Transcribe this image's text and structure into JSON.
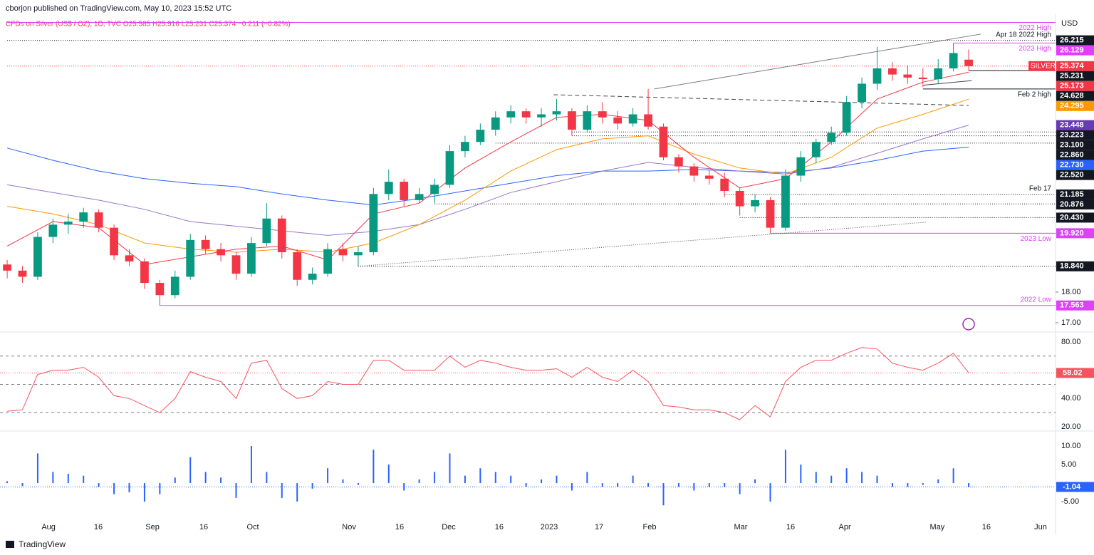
{
  "header": {
    "author_line": "cborjon published on TradingView.com, May 10, 2023 15:52 UTC",
    "symbol_line": "CFDs on Silver (US$ / OZ), 1D, TVC  O25.585 H25.916 L25.231 C25.374 −0.211 (−0.82%)"
  },
  "currency": "USD",
  "footer": "TradingView",
  "chart_data": [
    {
      "type": "candlestick",
      "up_color": "#089981",
      "down_color": "#f23645",
      "xlim": [
        -0.47,
        68.69
      ],
      "xticks": [
        {
          "value": 2.71,
          "label": "Aug"
        },
        {
          "value": 5.97,
          "label": "16"
        },
        {
          "value": 9.52,
          "label": "Sep"
        },
        {
          "value": 12.88,
          "label": "16"
        },
        {
          "value": 16.1,
          "label": "Oct"
        },
        {
          "value": 22.4,
          "label": "Nov"
        },
        {
          "value": 25.71,
          "label": "16"
        },
        {
          "value": 28.93,
          "label": "Dec"
        },
        {
          "value": 32.24,
          "label": "16"
        },
        {
          "value": 35.51,
          "label": "2023"
        },
        {
          "value": 38.78,
          "label": "17"
        },
        {
          "value": 42.09,
          "label": "Feb"
        },
        {
          "value": 48.06,
          "label": "Mar"
        },
        {
          "value": 51.33,
          "label": "16"
        },
        {
          "value": 54.88,
          "label": "Apr"
        },
        {
          "value": 60.94,
          "label": "May"
        },
        {
          "value": 64.16,
          "label": "16"
        },
        {
          "value": 67.71,
          "label": "Jun"
        }
      ],
      "ylim": [
        16.72,
        27.02
      ],
      "yticks": [
        {
          "value": 17,
          "label": "17.00"
        },
        {
          "value": 18,
          "label": "18.00"
        }
      ],
      "candles": [
        [
          18.9,
          19.05,
          18.45,
          18.7
        ],
        [
          18.7,
          18.85,
          18.3,
          18.5
        ],
        [
          18.5,
          19.95,
          18.4,
          19.8
        ],
        [
          19.8,
          20.4,
          19.6,
          20.2
        ],
        [
          20.2,
          20.55,
          19.9,
          20.3
        ],
        [
          20.3,
          20.75,
          20.1,
          20.6
        ],
        [
          20.6,
          20.7,
          19.95,
          20.1
        ],
        [
          20.1,
          20.2,
          19.05,
          19.2
        ],
        [
          19.2,
          19.4,
          18.85,
          19.0
        ],
        [
          19.0,
          19.1,
          18.1,
          18.3
        ],
        [
          18.3,
          18.4,
          17.563,
          17.9
        ],
        [
          17.9,
          18.7,
          17.8,
          18.5
        ],
        [
          18.5,
          19.9,
          18.4,
          19.7
        ],
        [
          19.7,
          19.85,
          19.25,
          19.4
        ],
        [
          19.4,
          19.6,
          19.0,
          19.2
        ],
        [
          19.2,
          19.3,
          18.4,
          18.6
        ],
        [
          18.6,
          19.8,
          18.5,
          19.6
        ],
        [
          19.6,
          20.9,
          19.5,
          20.4
        ],
        [
          20.4,
          20.5,
          19.1,
          19.3
        ],
        [
          19.3,
          19.4,
          18.2,
          18.4
        ],
        [
          18.4,
          18.8,
          18.25,
          18.6
        ],
        [
          18.6,
          19.6,
          18.5,
          19.4
        ],
        [
          19.4,
          19.6,
          19.0,
          19.2
        ],
        [
          19.2,
          19.5,
          18.84,
          19.3
        ],
        [
          19.3,
          21.4,
          19.2,
          21.2
        ],
        [
          21.2,
          22.0,
          21.0,
          21.6
        ],
        [
          21.6,
          21.7,
          20.8,
          21.0
        ],
        [
          21.0,
          21.4,
          20.9,
          21.2
        ],
        [
          21.2,
          21.7,
          20.9,
          21.5
        ],
        [
          21.5,
          22.8,
          21.4,
          22.6
        ],
        [
          22.6,
          23.1,
          22.4,
          22.9
        ],
        [
          22.9,
          23.5,
          22.8,
          23.3
        ],
        [
          23.3,
          23.9,
          23.1,
          23.7
        ],
        [
          23.7,
          24.1,
          23.5,
          23.9
        ],
        [
          23.9,
          24.0,
          23.5,
          23.7
        ],
        [
          23.7,
          24.0,
          23.4,
          23.8
        ],
        [
          23.8,
          24.3,
          23.6,
          23.9
        ],
        [
          23.9,
          24.0,
          23.1,
          23.3
        ],
        [
          23.3,
          24.1,
          23.2,
          23.9
        ],
        [
          23.9,
          24.2,
          23.5,
          23.7
        ],
        [
          23.7,
          23.9,
          23.3,
          23.5
        ],
        [
          23.5,
          24.0,
          23.4,
          23.8
        ],
        [
          23.8,
          24.628,
          23.3,
          23.4
        ],
        [
          23.4,
          23.5,
          22.3,
          22.4
        ],
        [
          22.4,
          22.5,
          21.9,
          22.1
        ],
        [
          22.1,
          22.2,
          21.6,
          21.8
        ],
        [
          21.8,
          22.0,
          21.5,
          21.7
        ],
        [
          21.7,
          21.9,
          21.1,
          21.3
        ],
        [
          21.3,
          21.4,
          20.5,
          20.8
        ],
        [
          20.8,
          21.2,
          20.6,
          21.0
        ],
        [
          21.0,
          21.1,
          19.92,
          20.1
        ],
        [
          20.1,
          22.0,
          20.0,
          21.8
        ],
        [
          21.8,
          22.6,
          21.6,
          22.4
        ],
        [
          22.4,
          23.0,
          22.2,
          22.9
        ],
        [
          22.9,
          23.4,
          22.8,
          23.2
        ],
        [
          23.2,
          24.4,
          23.1,
          24.2
        ],
        [
          24.2,
          25.0,
          24.0,
          24.8
        ],
        [
          24.8,
          26.0,
          24.6,
          25.3
        ],
        [
          25.3,
          25.5,
          24.9,
          25.1
        ],
        [
          25.1,
          25.4,
          24.8,
          25.0
        ],
        [
          25.0,
          25.3,
          24.7,
          24.95
        ],
        [
          24.95,
          25.6,
          24.8,
          25.3
        ],
        [
          25.3,
          26.129,
          25.2,
          25.8
        ],
        [
          25.585,
          25.916,
          25.231,
          25.374
        ]
      ],
      "ma_x": [
        0,
        3,
        6,
        9,
        12,
        15,
        18,
        21,
        24,
        27,
        30,
        33,
        36,
        39,
        42,
        45,
        48,
        51,
        54,
        57,
        60,
        63
      ],
      "series": [
        {
          "color": "#2962ff",
          "values": [
            22.7,
            22.3,
            21.95,
            21.7,
            21.55,
            21.44,
            21.2,
            21.0,
            20.84,
            21.05,
            21.3,
            21.55,
            21.8,
            21.95,
            21.95,
            22.0,
            21.95,
            21.9,
            22.05,
            22.3,
            22.6,
            22.73
          ]
        },
        {
          "color": "#9575cd",
          "values": [
            21.5,
            21.25,
            21.0,
            20.7,
            20.3,
            20.15,
            20.0,
            19.85,
            19.98,
            20.2,
            20.7,
            21.25,
            21.6,
            21.95,
            22.23,
            22.07,
            21.95,
            21.85,
            22.07,
            22.53,
            23.0,
            23.448
          ]
        },
        {
          "color": "#ff9800",
          "values": [
            20.8,
            20.55,
            20.2,
            19.6,
            19.4,
            19.3,
            19.4,
            19.3,
            19.6,
            20.2,
            21.0,
            21.95,
            22.65,
            23.0,
            23.1,
            22.5,
            22.05,
            21.85,
            22.4,
            23.35,
            23.8,
            24.295
          ]
        },
        {
          "color": "#f23645",
          "values": [
            19.5,
            20.3,
            20.1,
            18.9,
            19.15,
            19.4,
            19.5,
            19.05,
            20.55,
            20.9,
            22.05,
            22.9,
            23.7,
            23.8,
            23.6,
            22.4,
            21.4,
            21.7,
            22.9,
            24.3,
            24.85,
            25.173
          ]
        }
      ],
      "levels": [
        {
          "price": 26.8,
          "note": "2022 High",
          "note_pos": "below",
          "color": "#e040fb",
          "line": "solid",
          "from": 0,
          "box": false
        },
        {
          "price": 26.215,
          "note": "Apr 18 2022 High",
          "note_pos": "above",
          "color": "#131722",
          "line": "dotted",
          "from": 0
        },
        {
          "price": 26.129,
          "note": "2023 High",
          "note_pos": "below",
          "color": "#e040fb",
          "line": "solid",
          "from": 62
        },
        {
          "price": 25.374,
          "tag": "SILVER",
          "color": "#f23645",
          "line": "dotted",
          "from": 0
        },
        {
          "price": 25.231,
          "color": "#131722",
          "line": "solid",
          "from": 63
        },
        {
          "price": 25.173,
          "color": "#f23645"
        },
        {
          "price": 24.628,
          "note": "Feb 2 high",
          "note_pos": "below",
          "color": "#131722",
          "line": "solid",
          "from": 60
        },
        {
          "price": 24.295,
          "color": "#ff9800"
        },
        {
          "price": 23.448,
          "color": "#673ab7"
        },
        {
          "price": 23.223,
          "color": "#131722",
          "line": "dotted",
          "from": 37
        },
        {
          "price": {
            "value": 23.1,
            "label": "23.100"
          },
          "color": "#131722",
          "line": "dotted",
          "from": 37
        },
        {
          "price": {
            "value": 22.86,
            "label": "22.860"
          },
          "color": "#131722",
          "line": "dotted",
          "from": 32
        },
        {
          "price": {
            "value": 22.73,
            "label": "22.730"
          },
          "color": "#2962ff"
        },
        {
          "price": {
            "value": 22.52,
            "label": "22.520"
          },
          "color": "#131722"
        },
        {
          "price": 21.185,
          "note": "Feb 17",
          "note_pos": "above",
          "color": "#131722",
          "line": "dotted",
          "from": 47
        },
        {
          "price": 20.876,
          "color": "#131722",
          "line": "dotted",
          "from": 28
        },
        {
          "price": {
            "value": 20.43,
            "label": "20.430"
          },
          "color": "#131722",
          "line": "dotted",
          "from": 48
        },
        {
          "price": {
            "value": 19.92,
            "label": "19.920"
          },
          "note": "2023 Low",
          "note_pos": "below",
          "color": "#e040fb",
          "line": "solid",
          "from": 50
        },
        {
          "price": {
            "value": 18.84,
            "label": "18.840"
          },
          "color": "#131722",
          "line": "dotted",
          "from": 23
        },
        {
          "price": 17.563,
          "note": "2022 Low",
          "note_pos": "above",
          "color": "#e040fb",
          "line": "solid",
          "from": 10
        }
      ],
      "trendlines": [
        {
          "from": [
            42.4,
            24.628
          ],
          "to": [
            63.8,
            26.42
          ],
          "color": "#787b86",
          "style": "solid"
        },
        {
          "from": [
            35.8,
            24.44
          ],
          "to": [
            63,
            24.09
          ],
          "color": "#434651",
          "style": "dashed"
        },
        {
          "from": [
            23,
            18.84
          ],
          "to": [
            60.2,
            20.28
          ],
          "color": "#434651",
          "style": "dotted"
        },
        {
          "from": [
            60,
            24.75
          ],
          "to": [
            63.2,
            24.9
          ],
          "color": "#434651",
          "style": "solid"
        }
      ]
    },
    {
      "type": "line",
      "color": "#f7525f",
      "ylim": [
        17.5,
        86.5
      ],
      "yticks": [
        {
          "value": 80,
          "label": "80.00"
        },
        {
          "value": 40,
          "label": "40.00"
        },
        {
          "value": 20,
          "label": "20.00"
        }
      ],
      "bands": [
        70,
        50,
        30
      ],
      "values": [
        31,
        32,
        57,
        60,
        60,
        62,
        55,
        42,
        40,
        35,
        30,
        40,
        59,
        55,
        52,
        40,
        65,
        67,
        47,
        40,
        42,
        52,
        50,
        50,
        67,
        67,
        60,
        60,
        60,
        70,
        62,
        67,
        65,
        62,
        60,
        60,
        61,
        55,
        62,
        55,
        52,
        60,
        52,
        35,
        34,
        32,
        32,
        30,
        25,
        35,
        27,
        52,
        62,
        67,
        67,
        72,
        76,
        75,
        65,
        62,
        60,
        65,
        72,
        58.02
      ]
    },
    {
      "type": "bar",
      "color": "#2962ff",
      "ylim": [
        -9.6,
        13.85
      ],
      "yticks": [
        {
          "value": 10,
          "label": "10.00"
        },
        {
          "value": 5,
          "label": "5.00"
        },
        {
          "value": -5,
          "label": "-5.00"
        }
      ],
      "values": [
        0.5,
        -0.8,
        8,
        3,
        2.5,
        2,
        -1,
        -3,
        -2.5,
        -5,
        -3,
        1.5,
        7,
        3,
        1.5,
        -4,
        10,
        3,
        -4,
        -5,
        -1.5,
        4,
        1,
        -0.5,
        9,
        5,
        -2,
        1,
        3,
        8,
        2,
        4,
        3,
        2,
        -1,
        1,
        2,
        -2,
        3,
        -1,
        -1,
        2,
        -1,
        -6,
        -1,
        -2,
        -1,
        -1,
        -3,
        1,
        -5,
        9,
        5,
        3,
        2,
        4,
        3,
        2,
        -1,
        -1,
        -0.5,
        1,
        4,
        -1.04
      ]
    }
  ]
}
